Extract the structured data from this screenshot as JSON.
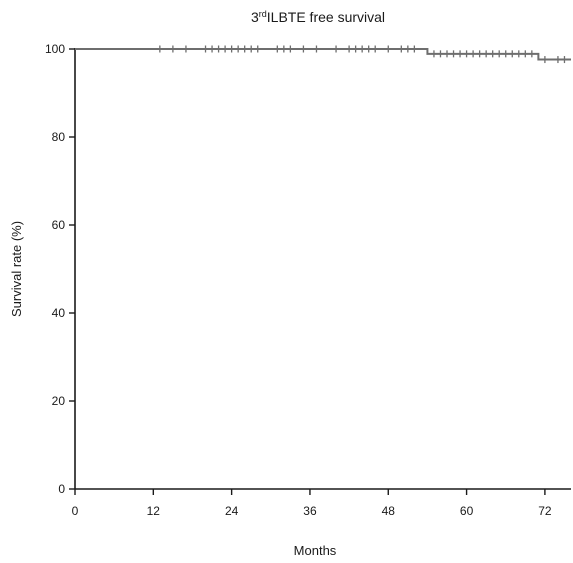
{
  "chart_data": {
    "type": "line",
    "title_main": "ILBTE free survival",
    "title_prefix": "3",
    "title_superscript": "rd",
    "xlabel": "Months",
    "ylabel": "Survival rate (%)",
    "xlim": [
      0,
      76
    ],
    "ylim": [
      0,
      100
    ],
    "xticks": [
      "0",
      "12",
      "24",
      "36",
      "48",
      "60",
      "72"
    ],
    "yticks": [
      "0",
      "20",
      "40",
      "60",
      "80",
      "100"
    ],
    "grid": false,
    "legend": "none",
    "series": [
      {
        "step_x": [
          0,
          54,
          54,
          71,
          71,
          76
        ],
        "step_y": [
          100,
          100,
          98.9,
          98.9,
          97.6,
          97.6
        ],
        "censored_x": [
          13,
          15,
          17,
          20,
          21,
          22,
          23,
          24,
          25,
          26,
          27,
          28,
          31,
          32,
          33,
          35,
          37,
          40,
          42,
          43,
          44,
          45,
          46,
          48,
          50,
          51,
          52,
          55,
          56,
          57,
          58,
          59,
          60,
          61,
          62,
          63,
          64,
          65,
          66,
          67,
          68,
          69,
          70,
          72,
          74,
          75
        ],
        "censored_y": [
          100,
          100,
          100,
          100,
          100,
          100,
          100,
          100,
          100,
          100,
          100,
          100,
          100,
          100,
          100,
          100,
          100,
          100,
          100,
          100,
          100,
          100,
          100,
          100,
          100,
          100,
          100,
          98.9,
          98.9,
          98.9,
          98.9,
          98.9,
          98.9,
          98.9,
          98.9,
          98.9,
          98.9,
          98.9,
          98.9,
          98.9,
          98.9,
          98.9,
          98.9,
          97.6,
          97.6,
          97.6
        ]
      }
    ],
    "colors": {
      "line": "#6e6e6e",
      "axis": "#1a1a1a",
      "text": "#1a1a1a"
    }
  }
}
